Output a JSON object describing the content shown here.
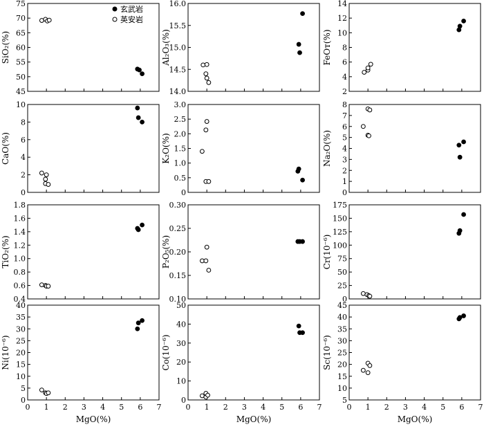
{
  "legend": {
    "basalt": "玄武岩",
    "dacite": "英安岩"
  },
  "shared_xlabel": "MgO(%)",
  "chart_data": [
    {
      "type": "scatter",
      "ylabel": "SiO₂(%)",
      "xlim": [
        0,
        7
      ],
      "ylim": [
        45,
        75
      ],
      "yticks": [
        45,
        50,
        55,
        60,
        65,
        70,
        75
      ],
      "xticks": [
        0,
        1,
        2,
        3,
        4,
        5,
        6,
        7
      ],
      "show_xtick_labels": false,
      "xlabel": "",
      "series": [
        {
          "name": "玄武岩",
          "points": [
            [
              5.85,
              52.6
            ],
            [
              5.95,
              52.3
            ],
            [
              6.1,
              51.0
            ]
          ]
        },
        {
          "name": "英安岩",
          "points": [
            [
              0.75,
              69.2
            ],
            [
              0.95,
              69.6
            ],
            [
              1.05,
              69.0
            ],
            [
              1.15,
              69.3
            ]
          ]
        }
      ]
    },
    {
      "type": "scatter",
      "ylabel": "Al₂O₃(%)",
      "xlim": [
        0,
        7
      ],
      "ylim": [
        14.0,
        16.0
      ],
      "yticks": [
        "14.0",
        "14.5",
        "15.0",
        "15.5",
        "16.0"
      ],
      "xticks": [
        0,
        1,
        2,
        3,
        4,
        5,
        6,
        7
      ],
      "show_xtick_labels": false,
      "xlabel": "",
      "series": [
        {
          "name": "玄武岩",
          "points": [
            [
              5.9,
              15.07
            ],
            [
              5.95,
              14.88
            ],
            [
              6.1,
              15.77
            ]
          ]
        },
        {
          "name": "英安岩",
          "points": [
            [
              0.8,
              14.6
            ],
            [
              1.0,
              14.61
            ],
            [
              0.95,
              14.4
            ],
            [
              1.0,
              14.3
            ],
            [
              1.1,
              14.2
            ]
          ]
        }
      ]
    },
    {
      "type": "scatter",
      "ylabel": "FeOᴛ(%)",
      "xlim": [
        0,
        7
      ],
      "ylim": [
        2,
        14
      ],
      "yticks": [
        2,
        4,
        6,
        8,
        10,
        12,
        14
      ],
      "xticks": [
        0,
        1,
        2,
        3,
        4,
        5,
        6,
        7
      ],
      "show_xtick_labels": false,
      "xlabel": "",
      "series": [
        {
          "name": "玄武岩",
          "points": [
            [
              5.85,
              10.4
            ],
            [
              5.9,
              10.9
            ],
            [
              6.1,
              11.6
            ]
          ]
        },
        {
          "name": "英安岩",
          "points": [
            [
              0.8,
              4.6
            ],
            [
              1.0,
              4.9
            ],
            [
              1.0,
              5.2
            ],
            [
              1.15,
              5.7
            ]
          ]
        }
      ]
    },
    {
      "type": "scatter",
      "ylabel": "CaO(%)",
      "xlim": [
        0,
        7
      ],
      "ylim": [
        0,
        10
      ],
      "yticks": [
        0,
        2,
        4,
        6,
        8,
        10
      ],
      "xticks": [
        0,
        1,
        2,
        3,
        4,
        5,
        6,
        7
      ],
      "show_xtick_labels": false,
      "xlabel": "",
      "series": [
        {
          "name": "玄武岩",
          "points": [
            [
              5.85,
              9.6
            ],
            [
              5.9,
              8.5
            ],
            [
              6.1,
              8.0
            ]
          ]
        },
        {
          "name": "英安岩",
          "points": [
            [
              0.75,
              2.2
            ],
            [
              1.0,
              2.0
            ],
            [
              0.95,
              1.5
            ],
            [
              0.95,
              1.0
            ],
            [
              1.1,
              0.9
            ]
          ]
        }
      ]
    },
    {
      "type": "scatter",
      "ylabel": "K₂O(%)",
      "xlim": [
        0,
        7
      ],
      "ylim": [
        0,
        3.0
      ],
      "yticks": [
        "0",
        "0.5",
        "1.0",
        "1.5",
        "2.0",
        "2.5",
        "3.0"
      ],
      "xticks": [
        0,
        1,
        2,
        3,
        4,
        5,
        6,
        7
      ],
      "show_xtick_labels": false,
      "xlabel": "",
      "series": [
        {
          "name": "玄武岩",
          "points": [
            [
              5.85,
              0.72
            ],
            [
              5.9,
              0.8
            ],
            [
              6.1,
              0.42
            ]
          ]
        },
        {
          "name": "英安岩",
          "points": [
            [
              0.75,
              1.4
            ],
            [
              1.0,
              2.42
            ],
            [
              0.95,
              2.13
            ],
            [
              0.95,
              0.37
            ],
            [
              1.1,
              0.37
            ]
          ]
        }
      ]
    },
    {
      "type": "scatter",
      "ylabel": "Na₂O(%)",
      "xlim": [
        0,
        7
      ],
      "ylim": [
        0,
        8
      ],
      "yticks": [
        0,
        1,
        2,
        3,
        4,
        5,
        6,
        7,
        8
      ],
      "xticks": [
        0,
        1,
        2,
        3,
        4,
        5,
        6,
        7
      ],
      "show_xtick_labels": false,
      "xlabel": "",
      "series": [
        {
          "name": "玄武岩",
          "points": [
            [
              5.85,
              4.3
            ],
            [
              6.1,
              4.6
            ],
            [
              5.9,
              3.2
            ]
          ]
        },
        {
          "name": "英安岩",
          "points": [
            [
              0.75,
              6.0
            ],
            [
              1.0,
              7.6
            ],
            [
              1.1,
              7.5
            ],
            [
              1.0,
              5.2
            ],
            [
              1.05,
              5.15
            ]
          ]
        }
      ]
    },
    {
      "type": "scatter",
      "ylabel": "TiO₂(%)",
      "xlim": [
        0,
        7
      ],
      "ylim": [
        0.4,
        1.8
      ],
      "yticks": [
        "0.4",
        "0.6",
        "0.8",
        "1.0",
        "1.2",
        "1.4",
        "1.6",
        "1.8"
      ],
      "xticks": [
        0,
        1,
        2,
        3,
        4,
        5,
        6,
        7
      ],
      "show_xtick_labels": false,
      "xlabel": "",
      "series": [
        {
          "name": "玄武岩",
          "points": [
            [
              5.85,
              1.45
            ],
            [
              5.9,
              1.43
            ],
            [
              6.1,
              1.5
            ]
          ]
        },
        {
          "name": "英安岩",
          "points": [
            [
              0.75,
              0.61
            ],
            [
              0.95,
              0.6
            ],
            [
              1.0,
              0.59
            ],
            [
              1.1,
              0.59
            ]
          ]
        }
      ]
    },
    {
      "type": "scatter",
      "ylabel": "P₂O₅(%)",
      "xlim": [
        0,
        7
      ],
      "ylim": [
        0.1,
        0.3
      ],
      "yticks": [
        "0.10",
        "0.15",
        "0.20",
        "0.25",
        "0.30"
      ],
      "xticks": [
        0,
        1,
        2,
        3,
        4,
        5,
        6,
        7
      ],
      "show_xtick_labels": false,
      "xlabel": "",
      "series": [
        {
          "name": "玄武岩",
          "points": [
            [
              5.85,
              0.222
            ],
            [
              5.95,
              0.222
            ],
            [
              6.1,
              0.222
            ]
          ]
        },
        {
          "name": "英安岩",
          "points": [
            [
              0.75,
              0.181
            ],
            [
              0.95,
              0.181
            ],
            [
              1.0,
              0.21
            ],
            [
              1.1,
              0.161
            ]
          ]
        }
      ]
    },
    {
      "type": "scatter",
      "ylabel": "Cr(10⁻⁶)",
      "xlim": [
        0,
        7
      ],
      "ylim": [
        0,
        175
      ],
      "yticks": [
        0,
        25,
        50,
        75,
        100,
        125,
        150,
        175
      ],
      "xticks": [
        0,
        1,
        2,
        3,
        4,
        5,
        6,
        7
      ],
      "show_xtick_labels": false,
      "xlabel": "",
      "series": [
        {
          "name": "玄武岩",
          "points": [
            [
              5.85,
              122
            ],
            [
              5.9,
              127
            ],
            [
              6.1,
              157
            ]
          ]
        },
        {
          "name": "英安岩",
          "points": [
            [
              0.75,
              10
            ],
            [
              0.95,
              8
            ],
            [
              1.05,
              6
            ],
            [
              1.1,
              5
            ]
          ]
        }
      ]
    },
    {
      "type": "scatter",
      "ylabel": "Ni(10⁻⁶)",
      "xlim": [
        0,
        7
      ],
      "ylim": [
        0,
        40
      ],
      "yticks": [
        0,
        5,
        10,
        15,
        20,
        25,
        30,
        35,
        40
      ],
      "xticks": [
        0,
        1,
        2,
        3,
        4,
        5,
        6,
        7
      ],
      "show_xtick_labels": true,
      "xlabel": "MgO(%)",
      "series": [
        {
          "name": "玄武岩",
          "points": [
            [
              5.85,
              30
            ],
            [
              5.9,
              32.5
            ],
            [
              6.1,
              33.5
            ]
          ]
        },
        {
          "name": "英安岩",
          "points": [
            [
              0.75,
              4.2
            ],
            [
              0.95,
              3.0
            ],
            [
              1.0,
              2.7
            ],
            [
              1.1,
              3.0
            ]
          ]
        }
      ]
    },
    {
      "type": "scatter",
      "ylabel": "Co(10⁻⁶)",
      "xlim": [
        0,
        7
      ],
      "ylim": [
        0,
        50
      ],
      "yticks": [
        0,
        10,
        20,
        30,
        40,
        50
      ],
      "xticks": [
        0,
        1,
        2,
        3,
        4,
        5,
        6,
        7
      ],
      "show_xtick_labels": true,
      "xlabel": "MgO(%)",
      "series": [
        {
          "name": "玄武岩",
          "points": [
            [
              5.9,
              39
            ],
            [
              5.95,
              35.5
            ],
            [
              6.1,
              35.5
            ]
          ]
        },
        {
          "name": "英安岩",
          "points": [
            [
              0.75,
              2.2
            ],
            [
              0.95,
              3.5
            ],
            [
              0.95,
              1.5
            ],
            [
              1.05,
              2.5
            ]
          ]
        }
      ]
    },
    {
      "type": "scatter",
      "ylabel": "Sc(10⁻⁶)",
      "xlim": [
        0,
        7
      ],
      "ylim": [
        5,
        45
      ],
      "yticks": [
        5,
        10,
        15,
        20,
        25,
        30,
        35,
        40,
        45
      ],
      "xticks": [
        0,
        1,
        2,
        3,
        4,
        5,
        6,
        7
      ],
      "show_xtick_labels": true,
      "xlabel": "MgO(%)",
      "series": [
        {
          "name": "玄武岩",
          "points": [
            [
              5.85,
              39.2
            ],
            [
              5.9,
              39.8
            ],
            [
              6.1,
              40.5
            ]
          ]
        },
        {
          "name": "英安岩",
          "points": [
            [
              0.75,
              17.5
            ],
            [
              1.0,
              20.5
            ],
            [
              1.1,
              19.5
            ],
            [
              1.0,
              16.5
            ]
          ]
        }
      ]
    }
  ]
}
